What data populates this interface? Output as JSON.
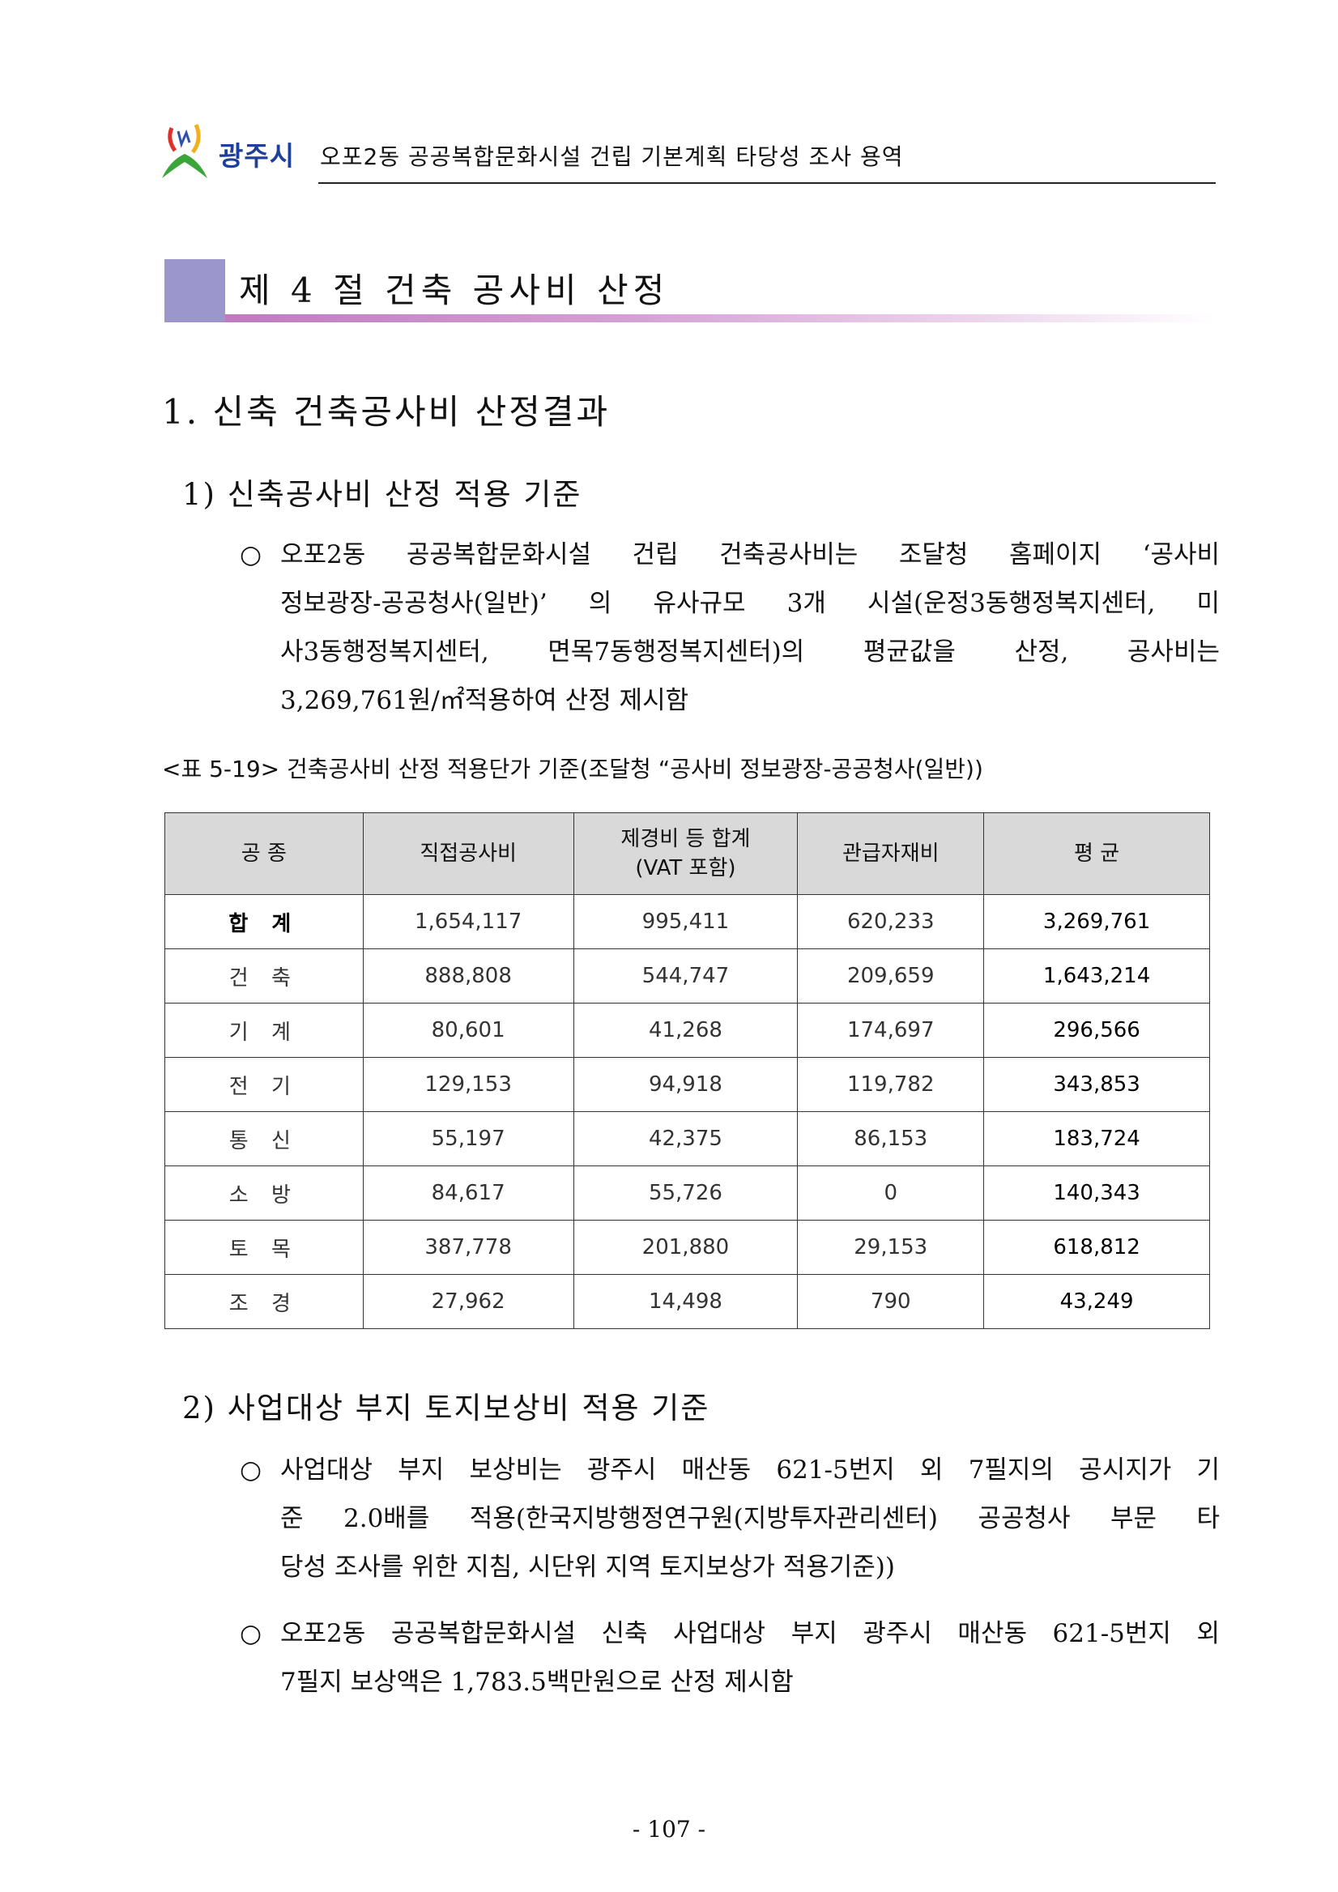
{
  "header": {
    "logo_text": "광주시",
    "title": "오포2동 공공복합문화시설 건립 기본계획 타당성 조사 용역"
  },
  "section": {
    "title": "제 4 절 건축 공사비 산정"
  },
  "heading1": "1. 신축 건축공사비 산정결과",
  "sub1": {
    "title": "1) 신축공사비 산정 적용 기준",
    "bullet_mark": "○",
    "bullet_lines": [
      "오포2동 공공복합문화시설 건립 건축공사비는 조달청 홈페이지 ‘공사비",
      "정보광장-공공청사(일반)’ 의 유사규모 3개 시설(운정3동행정복지센터, 미",
      "사3동행정복지센터, 면목7동행정복지센터)의 평균값을 산정, 공사비는",
      "3,269,761원/㎡적용하여 산정 제시함"
    ]
  },
  "table": {
    "caption": "<표 5-19> 건축공사비 산정 적용단가 기준(조달청 “공사비 정보광장-공공청사(일반))",
    "headers": [
      "공 종",
      "직접공사비",
      "제경비 등 합계",
      "(VAT 포함)",
      "관급자재비",
      "평 균"
    ],
    "rows": [
      [
        "합 계",
        "1,654,117",
        "995,411",
        "620,233",
        "3,269,761"
      ],
      [
        "건 축",
        "888,808",
        "544,747",
        "209,659",
        "1,643,214"
      ],
      [
        "기 계",
        "80,601",
        "41,268",
        "174,697",
        "296,566"
      ],
      [
        "전 기",
        "129,153",
        "94,918",
        "119,782",
        "343,853"
      ],
      [
        "통 신",
        "55,197",
        "42,375",
        "86,153",
        "183,724"
      ],
      [
        "소 방",
        "84,617",
        "55,726",
        "0",
        "140,343"
      ],
      [
        "토 목",
        "387,778",
        "201,880",
        "29,153",
        "618,812"
      ],
      [
        "조 경",
        "27,962",
        "14,498",
        "790",
        "43,249"
      ]
    ]
  },
  "sub2": {
    "title": "2) 사업대상 부지 토지보상비 적용 기준",
    "bullet_mark": "○",
    "bullet1_lines": [
      "사업대상 부지 보상비는 광주시 매산동 621-5번지 외 7필지의 공시지가 기",
      "준 2.0배를 적용(한국지방행정연구원(지방투자관리센터) 공공청사 부문 타",
      "당성 조사를 위한 지침, 시단위 지역 토지보상가 적용기준))"
    ],
    "bullet2_lines": [
      "오포2동 공공복합문화시설 신축 사업대상 부지 광주시 매산동 621-5번지 외",
      "7필지 보상액은 1,783.5백만원으로 산정 제시함"
    ]
  },
  "page_number": "- 107 -",
  "colors": {
    "section_box": "#9b97cc",
    "section_bar": "#c07ac0",
    "logo_text": "#1f3f9a",
    "table_header_bg": "#d9d9d9"
  }
}
